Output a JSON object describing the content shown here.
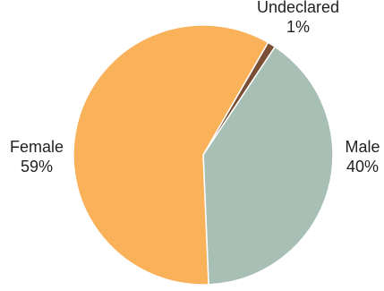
{
  "chart_data": {
    "type": "pie",
    "categories": [
      "Female",
      "Male",
      "Undeclared"
    ],
    "values": [
      59,
      40,
      1
    ],
    "value_labels": [
      "59%",
      "40%",
      "1%"
    ],
    "unit": "%",
    "start_angle_deg": 30,
    "direction": "clockwise",
    "legend": "none",
    "colors": [
      "#f9b15a",
      "#a8bfb5",
      "#7a4f36"
    ]
  }
}
